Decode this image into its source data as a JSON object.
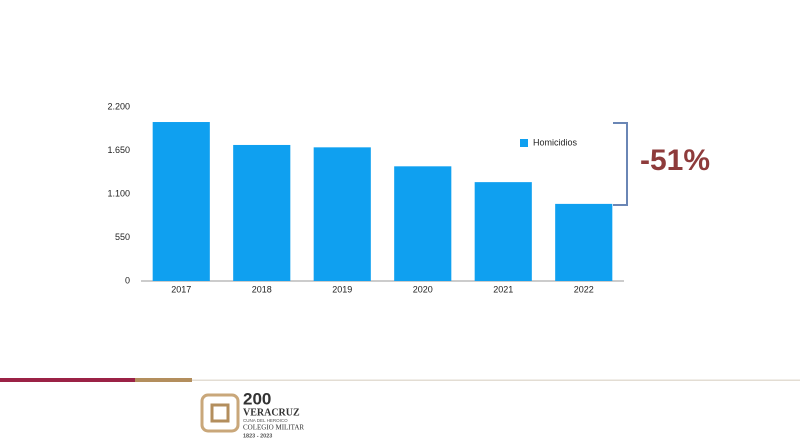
{
  "chart_data": {
    "type": "bar",
    "categories": [
      "2017",
      "2018",
      "2019",
      "2020",
      "2021",
      "2022"
    ],
    "series": [
      {
        "name": "Homicidios",
        "color": "#0fa0f0",
        "values": [
          2010,
          1720,
          1690,
          1450,
          1250,
          975
        ]
      }
    ],
    "ylim": [
      0,
      2200
    ],
    "yticks": [
      0,
      550,
      {
        "value": 1100,
        "label": "1.100"
      },
      {
        "value": 1650,
        "label": "1.650"
      },
      {
        "value": 2200,
        "label": "2.200"
      }
    ],
    "grid": false,
    "legend": "upper-right",
    "annotation": "-51%"
  },
  "footer": {
    "logo": {
      "number": "200",
      "state": "VERACRUZ",
      "line1": "CUNA DEL HEROICO",
      "line2": "COLEGIO MILITAR",
      "years": "1823 - 2023"
    }
  }
}
